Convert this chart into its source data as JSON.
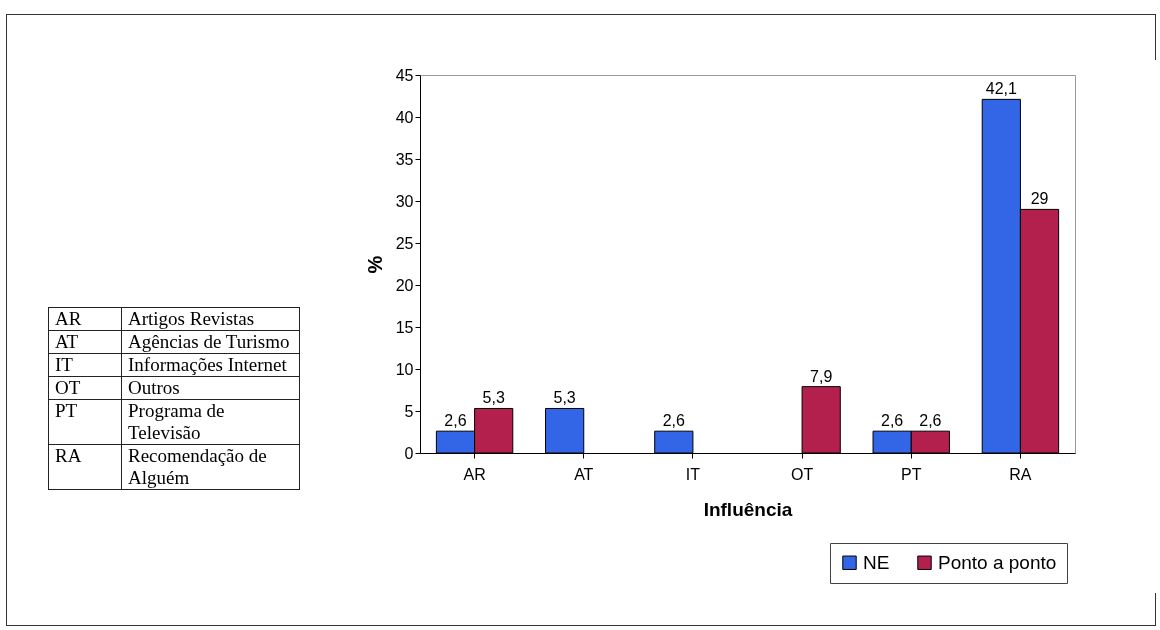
{
  "chart_data": {
    "type": "bar",
    "xlabel": "Influência",
    "ylabel": "%",
    "categories": [
      "AR",
      "AT",
      "IT",
      "OT",
      "PT",
      "RA"
    ],
    "series": [
      {
        "name": "NE",
        "color": "#3366e6",
        "values": [
          2.6,
          5.3,
          2.6,
          null,
          2.6,
          42.1
        ],
        "value_labels": [
          "2,6",
          "5,3",
          "2,6",
          null,
          "2,6",
          "42,1"
        ]
      },
      {
        "name": "Ponto a ponto",
        "color": "#b3204d",
        "values": [
          5.3,
          null,
          null,
          7.9,
          2.6,
          29
        ],
        "value_labels": [
          "5,3",
          null,
          null,
          "7,9",
          "2,6",
          "29"
        ]
      }
    ],
    "ylim": [
      0,
      45
    ],
    "yticks": [
      0,
      5,
      10,
      15,
      20,
      25,
      30,
      35,
      40,
      45
    ],
    "grid": false,
    "legend": "bottom right",
    "annotations": [
      "AR",
      "Artigos Revistas",
      "AT",
      "Agências de Turismo",
      "IT",
      "Informações Internet",
      "OT",
      "Outros",
      "PT",
      "Programa de Televisão",
      "RA",
      "Recomendação de Alguém"
    ]
  }
}
